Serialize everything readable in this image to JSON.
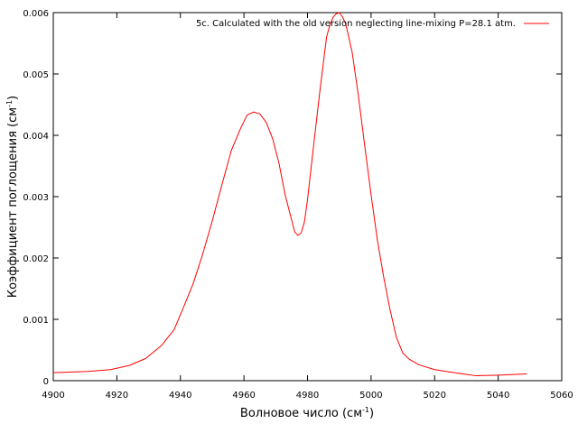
{
  "chart_data": {
    "type": "line",
    "xlabel": "Волновое число (см",
    "xlabel_sup": "-1",
    "xlabel_tail": ")",
    "ylabel": "Коэффициент поглощения (см",
    "ylabel_sup": "-1",
    "ylabel_tail": ")",
    "xlim": [
      4900,
      5060
    ],
    "ylim": [
      0,
      0.006
    ],
    "x_ticks": [
      4900,
      4920,
      4940,
      4960,
      4980,
      5000,
      5020,
      5040,
      5060
    ],
    "y_ticks": [
      0,
      0.001,
      0.002,
      0.003,
      0.004,
      0.005,
      0.006
    ],
    "x_tick_labels": [
      "4900",
      "4920",
      "4940",
      "4960",
      "4980",
      "5000",
      "5020",
      "5040",
      "5060"
    ],
    "y_tick_labels": [
      "0",
      "0.001",
      "0.002",
      "0.003",
      "0.004",
      "0.005",
      "0.006"
    ],
    "grid": false,
    "legend_position": "top-right",
    "series": [
      {
        "name": "5c. Calculated with the old  version neglecting line-mixing P=28.1 atm.",
        "color": "#ff0000",
        "x": [
          4900,
          4911,
          4918,
          4924,
          4929,
          4934,
          4938,
          4941,
          4944,
          4947,
          4950,
          4953,
          4956,
          4959,
          4961,
          4963,
          4965,
          4967,
          4969,
          4971,
          4973,
          4975,
          4976,
          4977,
          4978,
          4979,
          4980,
          4982,
          4984,
          4986,
          4987,
          4988,
          4989,
          4990,
          4991,
          4992,
          4994,
          4996,
          4998,
          5000,
          5002,
          5004,
          5006,
          5008,
          5010,
          5012,
          5015,
          5020,
          5025,
          5033,
          5040,
          5049
        ],
        "y": [
          0.00013,
          0.00015,
          0.00018,
          0.00025,
          0.00036,
          0.00057,
          0.00083,
          0.0012,
          0.00158,
          0.00206,
          0.0026,
          0.00318,
          0.00375,
          0.00412,
          0.00433,
          0.00438,
          0.00435,
          0.00421,
          0.00395,
          0.00355,
          0.00302,
          0.00262,
          0.00242,
          0.00237,
          0.00241,
          0.00258,
          0.00295,
          0.00387,
          0.00477,
          0.0056,
          0.0058,
          0.00592,
          0.00598,
          0.006,
          0.00593,
          0.00582,
          0.00537,
          0.00465,
          0.00383,
          0.00303,
          0.00229,
          0.00168,
          0.00115,
          0.0007,
          0.00045,
          0.00035,
          0.00026,
          0.00018,
          0.00014,
          8e-05,
          9e-05,
          0.00011
        ]
      }
    ]
  }
}
